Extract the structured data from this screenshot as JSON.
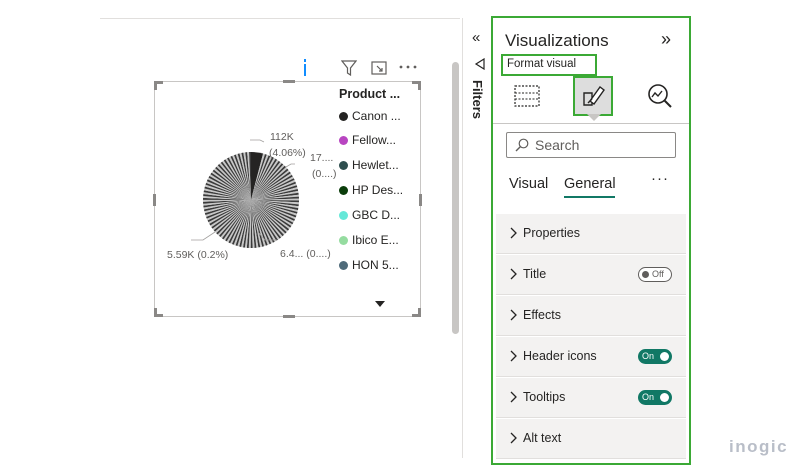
{
  "canvas": {
    "legend_title": "Product ...",
    "legend_items": [
      {
        "label": "Canon ...",
        "color": "#252423"
      },
      {
        "label": "Fellow...",
        "color": "#b845c1"
      },
      {
        "label": "Hewlet...",
        "color": "#2f4f4f"
      },
      {
        "label": "HP Des...",
        "color": "#0b3d0b"
      },
      {
        "label": "GBC D...",
        "color": "#66e8d8"
      },
      {
        "label": "Ibico E...",
        "color": "#95dca0"
      },
      {
        "label": "HON 5...",
        "color": "#4f6b7a"
      }
    ],
    "data_labels": {
      "top_value": "112K",
      "top_pct": "(4.06%)",
      "right_value": "17....",
      "right_pct": "(0....)",
      "left_label": "5.59K (0.2%)",
      "bottom_label": "6.4... (0....)"
    },
    "icons": [
      "info-icon",
      "filter-icon",
      "focus-mode-icon",
      "more-options-icon"
    ]
  },
  "filters": {
    "label": "Filters",
    "collapse_glyph": "«"
  },
  "visualizations": {
    "title": "Visualizations",
    "collapse_glyph": "»",
    "format_label": "Format visual",
    "search_placeholder": "Search",
    "subtabs": [
      "Visual",
      "General"
    ],
    "active_subtab": "General",
    "more_glyph": "···",
    "cards": [
      {
        "label": "Properties",
        "toggle": null
      },
      {
        "label": "Title",
        "toggle": "Off"
      },
      {
        "label": "Effects",
        "toggle": null
      },
      {
        "label": "Header icons",
        "toggle": "On"
      },
      {
        "label": "Tooltips",
        "toggle": "On"
      },
      {
        "label": "Alt text",
        "toggle": null
      }
    ]
  },
  "accent_colors": {
    "highlight_green": "#3ba935",
    "toggle_on": "#117865"
  },
  "brand": "inogic"
}
